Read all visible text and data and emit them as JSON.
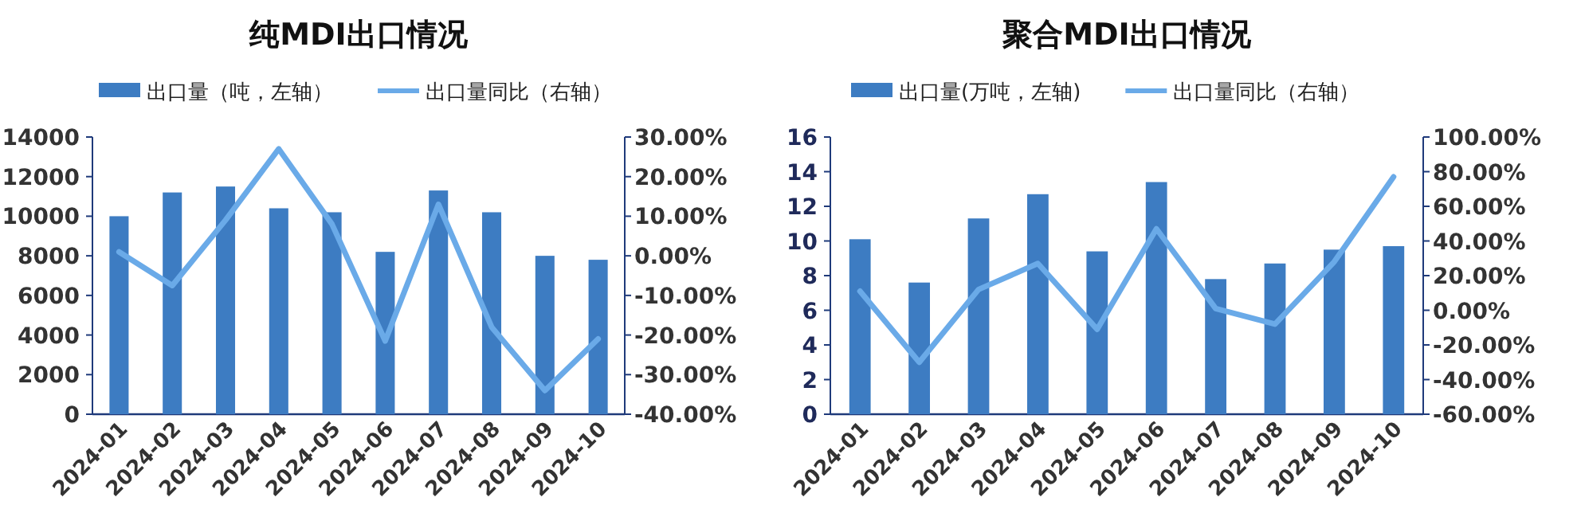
{
  "chart_data": [
    {
      "type": "bar",
      "title": "纯MDI出口情况",
      "categories": [
        "2024-01",
        "2024-02",
        "2024-03",
        "2024-04",
        "2024-05",
        "2024-06",
        "2024-07",
        "2024-08",
        "2024-09",
        "2024-10"
      ],
      "series": [
        {
          "name": "出口量（吨，左轴）",
          "color": "#3d7cc2",
          "values": [
            10000,
            11200,
            11500,
            10400,
            10200,
            8200,
            11300,
            10200,
            8000,
            7800
          ]
        },
        {
          "name": "出口量同比（右轴）",
          "type": "line",
          "axis": "y2",
          "color": "#6aaae8",
          "values": [
            1,
            -7.5,
            9,
            27,
            8,
            -21.5,
            13,
            -18,
            -34,
            -21
          ]
        }
      ],
      "ylim": [
        0,
        14000
      ],
      "yticks": [
        0,
        2000,
        4000,
        6000,
        8000,
        10000,
        12000,
        14000
      ],
      "y2lim": [
        -40,
        30
      ],
      "y2ticks": [
        {
          "value": -40,
          "label": "-40.00%"
        },
        {
          "value": -30,
          "label": "-30.00%"
        },
        {
          "value": -20,
          "label": "-20.00%"
        },
        {
          "value": -10,
          "label": "-10.00%"
        },
        {
          "value": 0,
          "label": "0.00%"
        },
        {
          "value": 10,
          "label": "10.00%"
        },
        {
          "value": 20,
          "label": "20.00%"
        },
        {
          "value": 30,
          "label": "30.00%"
        }
      ],
      "legend": "top"
    },
    {
      "type": "bar",
      "title": "聚合MDI出口情况",
      "categories": [
        "2024-01",
        "2024-02",
        "2024-03",
        "2024-04",
        "2024-05",
        "2024-06",
        "2024-07",
        "2024-08",
        "2024-09",
        "2024-10"
      ],
      "series": [
        {
          "name": "出口量(万吨，左轴)",
          "color": "#3d7cc2",
          "values": [
            10.1,
            7.6,
            11.3,
            12.7,
            9.4,
            13.4,
            7.8,
            8.7,
            9.5,
            9.7
          ]
        },
        {
          "name": "出口量同比（右轴）",
          "type": "line",
          "axis": "y2",
          "color": "#6aaae8",
          "values": [
            11,
            -30,
            12,
            27,
            -11,
            47,
            1,
            -8,
            28,
            77
          ]
        }
      ],
      "ylim": [
        0,
        16
      ],
      "yticks": [
        0,
        2,
        4,
        6,
        8,
        10,
        12,
        14,
        16
      ],
      "y2lim": [
        -60,
        100
      ],
      "y2ticks": [
        {
          "value": -60,
          "label": "-60.00%"
        },
        {
          "value": -40,
          "label": "-40.00%"
        },
        {
          "value": -20,
          "label": "-20.00%"
        },
        {
          "value": 0,
          "label": "0.00%"
        },
        {
          "value": 20,
          "label": "20.00%"
        },
        {
          "value": 40,
          "label": "40.00%"
        },
        {
          "value": 60,
          "label": "60.00%"
        },
        {
          "value": 80,
          "label": "80.00%"
        },
        {
          "value": 100,
          "label": "100.00%"
        }
      ],
      "legend": "top"
    }
  ]
}
